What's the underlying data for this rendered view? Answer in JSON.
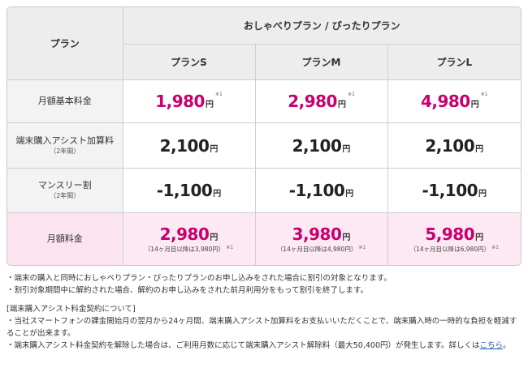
{
  "table": {
    "plan_header": "プラン",
    "group_header": "おしゃべりプラン / ぴったりプラン",
    "columns": [
      "プランS",
      "プランM",
      "プランL"
    ],
    "rows": {
      "basic_fee": {
        "label": "月額基本料金",
        "values": [
          "1,980",
          "2,980",
          "4,980"
        ],
        "unit": "円",
        "note": "※1"
      },
      "assist_fee": {
        "label": "端末購入アシスト加算料",
        "sub": "（2年間）",
        "values": [
          "2,100",
          "2,100",
          "2,100"
        ],
        "unit": "円"
      },
      "monthly_discount": {
        "label": "マンスリー割",
        "sub": "（2年間）",
        "values": [
          "-1,100",
          "-1,100",
          "-1,100"
        ],
        "unit": "円"
      },
      "monthly_total": {
        "label": "月額料金",
        "values": [
          "2,980",
          "3,980",
          "5,980"
        ],
        "unit": "円",
        "after": [
          "（14ヶ月目以降は3,980円）",
          "（14ヶ月目以降は4,980円）",
          "（14ヶ月目以降は6,980円）"
        ],
        "note": "※1"
      }
    }
  },
  "notes": {
    "line1": "・端末の購入と同時におしゃべりプラン・ぴったりプランのお申し込みをされた場合に割引の対象となります。",
    "line2": "・割引対象期間中に解約された場合、解約のお申し込みをされた前月利用分をもって割引を終了します。",
    "heading": "[端末購入アシスト料金契約について]",
    "line3": "・当社スマートフォンの課金開始月の翌月から24ヶ月間、端末購入アシスト加算料をお支払いいただくことで、端末購入時の一時的な負担を軽減することが出来ます。",
    "line4_text": "・端末購入アシスト料金契約を解除した場合は、ご利用月数に応じて端末購入アシスト解除料（最大50,400円）が発生します。詳しくは",
    "line4_link": "こちら",
    "line4_end": "。"
  },
  "colors": {
    "accent": "#c8006e",
    "total_bg": "#fde9f3",
    "header_bg": "#ededed"
  }
}
